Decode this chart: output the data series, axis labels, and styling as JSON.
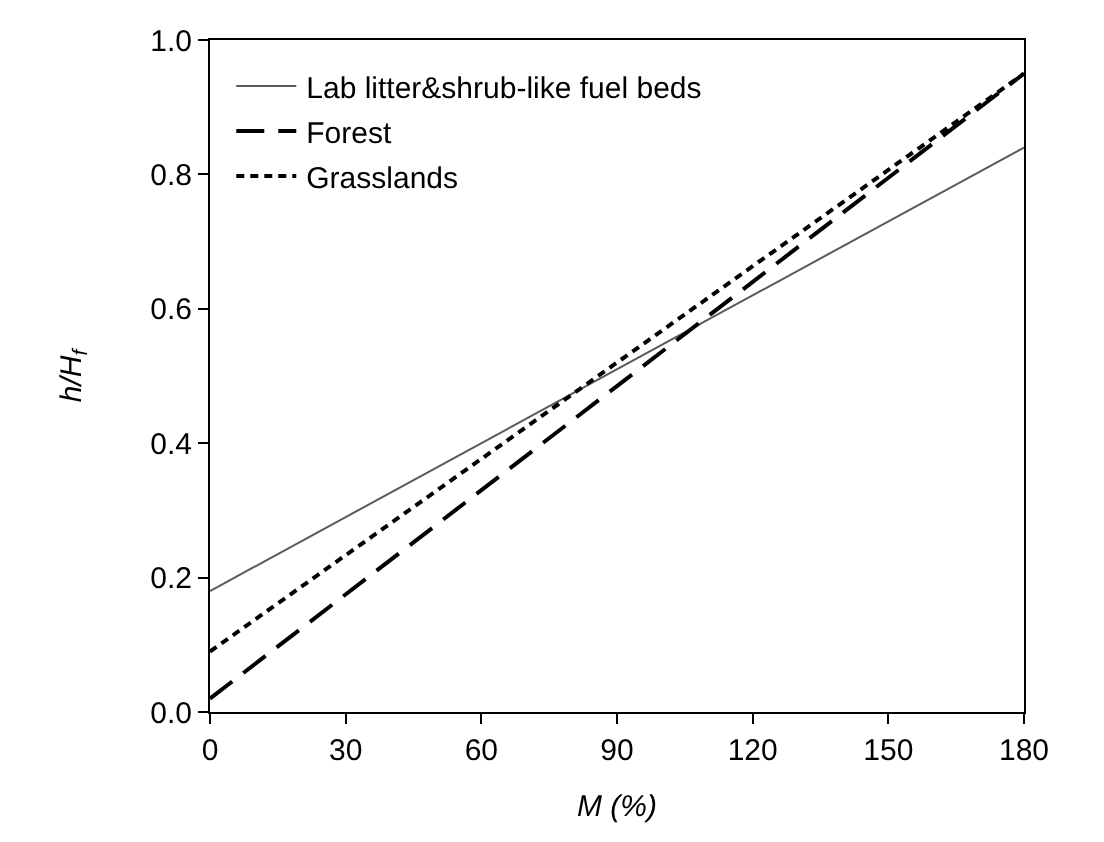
{
  "chart_data": {
    "type": "line",
    "xlabel": "M (%)",
    "ylabel": "h/H$_{f}$",
    "x": [
      0,
      180
    ],
    "series": [
      {
        "name": "Lab litter&shrub-like fuel beds",
        "color": "#595959",
        "values": [
          0.18,
          0.84
        ],
        "line_style": "solid"
      },
      {
        "name": "Forest",
        "color": "#000000",
        "values": [
          0.02,
          0.95
        ],
        "line_style": "dashed"
      },
      {
        "name": "Grasslands",
        "color": "#000000",
        "values": [
          0.09,
          0.95
        ],
        "line_style": "dotted"
      }
    ],
    "xlim": [
      0,
      180
    ],
    "xticks": [
      0,
      30,
      60,
      90,
      120,
      150,
      180
    ],
    "ylim": [
      0,
      1
    ],
    "yticks": [
      {
        "value": 0,
        "label": "0.0"
      },
      {
        "value": 0.2,
        "label": "0.2"
      },
      {
        "value": 0.4,
        "label": "0.4"
      },
      {
        "value": 0.6,
        "label": "0.6"
      },
      {
        "value": 0.8,
        "label": "0.8"
      },
      {
        "value": 1,
        "label": "1.0"
      }
    ],
    "grid": false,
    "legend": "top left",
    "marker": "none"
  }
}
